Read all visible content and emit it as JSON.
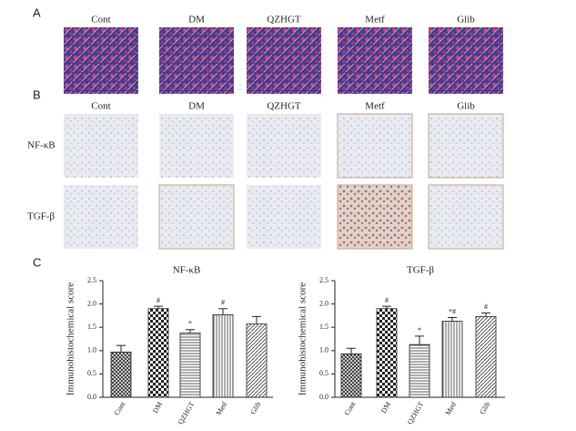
{
  "panels": {
    "a": {
      "label": "A",
      "columns": [
        "Cont",
        "DM",
        "QZHGT",
        "Metf",
        "Glib"
      ]
    },
    "b": {
      "label": "B",
      "columns": [
        "Cont",
        "DM",
        "QZHGT",
        "Metf",
        "Glib"
      ],
      "rows": [
        "NF-κB",
        "TGF-β"
      ]
    },
    "c": {
      "label": "C"
    }
  },
  "chart_data": [
    {
      "type": "bar",
      "title": "NF-κB",
      "y_label": "Immunohistochemical score",
      "categories": [
        "Cont",
        "DM",
        "QZHGT",
        "Metf",
        "Glib"
      ],
      "values": [
        0.97,
        1.9,
        1.38,
        1.77,
        1.57
      ],
      "errors": [
        0.14,
        0.05,
        0.07,
        0.13,
        0.16
      ],
      "annotations": [
        null,
        "#",
        "*",
        "#",
        null
      ],
      "patterns": [
        "crosshatch",
        "checker",
        "horizontal",
        "vertical",
        "diagonal"
      ],
      "ylim": [
        0,
        2.5
      ],
      "yticks": [
        {
          "value": 0,
          "label": "0.0"
        },
        {
          "value": 0.5,
          "label": "0.5"
        },
        {
          "value": 1,
          "label": "1.0"
        },
        {
          "value": 1.5,
          "label": "1.5"
        },
        {
          "value": 2,
          "label": "2.0"
        },
        {
          "value": 2.5,
          "label": "2.5"
        }
      ]
    },
    {
      "type": "bar",
      "title": "TGF-β",
      "y_label": "Immunohistochemical score",
      "categories": [
        "Cont",
        "DM",
        "QZHGT",
        "Metf",
        "Glib"
      ],
      "values": [
        0.93,
        1.9,
        1.13,
        1.63,
        1.73
      ],
      "errors": [
        0.12,
        0.05,
        0.18,
        0.08,
        0.08
      ],
      "annotations": [
        null,
        "#",
        "*",
        "*#",
        "#"
      ],
      "patterns": [
        "crosshatch",
        "checker",
        "horizontal",
        "vertical",
        "diagonal"
      ],
      "ylim": [
        0,
        2.5
      ],
      "yticks": [
        {
          "value": 0,
          "label": "0.0"
        },
        {
          "value": 0.5,
          "label": "0.5"
        },
        {
          "value": 1,
          "label": "1.0"
        },
        {
          "value": 1.5,
          "label": "1.5"
        },
        {
          "value": 2,
          "label": "2.0"
        },
        {
          "value": 2.5,
          "label": "2.5"
        }
      ]
    }
  ]
}
